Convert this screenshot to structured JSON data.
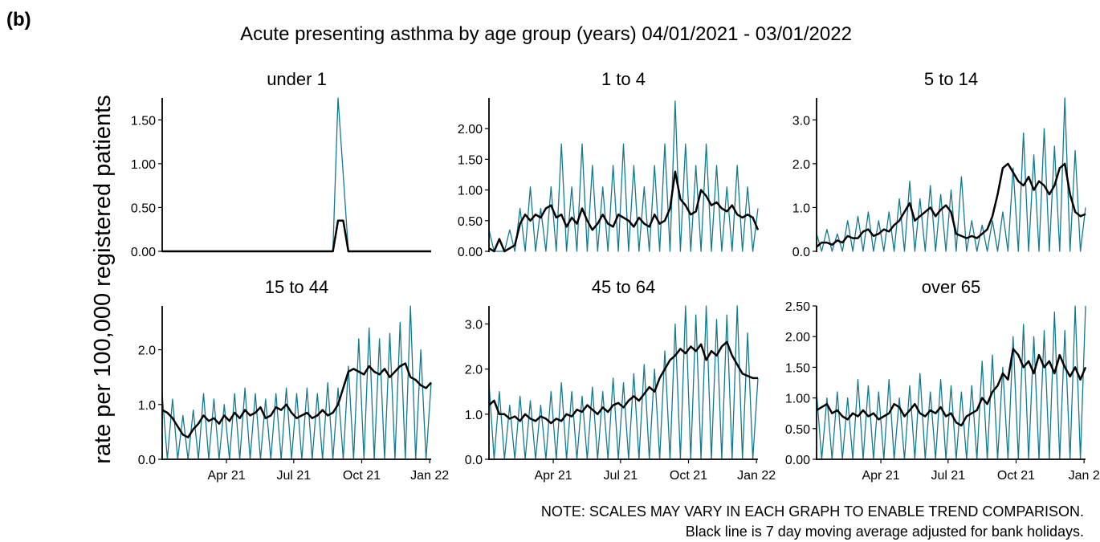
{
  "figure": {
    "label": "(b)",
    "title": "Acute presenting asthma by age group (years) 04/01/2021 - 03/01/2022",
    "ylabel": "rate per 100,000 registered patients",
    "notes": [
      "NOTE: SCALES MAY VARY IN EACH GRAPH TO ENABLE TREND COMPARISON.",
      "Black line is 7 day moving average adjusted for bank holidays."
    ]
  },
  "chart_data": [
    {
      "type": "line",
      "title": "under 1",
      "x": [
        0,
        7,
        14,
        21,
        28,
        35,
        42,
        49,
        56,
        63,
        70,
        77,
        84,
        91,
        98,
        105,
        112,
        119,
        126,
        133,
        140,
        147,
        154,
        161,
        168,
        175,
        182,
        189,
        196,
        203,
        210,
        217,
        224,
        231,
        238,
        245,
        252,
        259,
        266,
        273,
        280,
        287,
        294,
        301,
        308,
        315,
        322,
        329,
        336,
        343,
        350,
        357,
        364
      ],
      "xlim": [
        0,
        364
      ],
      "ylim": [
        0,
        1.75
      ],
      "yticks": [
        {
          "value": 0,
          "label": "0.00"
        },
        {
          "value": 0.5,
          "label": "0.50"
        },
        {
          "value": 1,
          "label": "1.00"
        },
        {
          "value": 1.5,
          "label": "1.50"
        }
      ],
      "series": [
        {
          "color": "#127a8f",
          "values": [
            0,
            0,
            0,
            0,
            0,
            0,
            0,
            0,
            0,
            0,
            0,
            0,
            0,
            0,
            0,
            0,
            0,
            0,
            0,
            0,
            0,
            0,
            0,
            0,
            0,
            0,
            0,
            0,
            0,
            0,
            0,
            0,
            0,
            0,
            1.75,
            0.87,
            0,
            0,
            0,
            0,
            0,
            0,
            0,
            0,
            0,
            0,
            0,
            0,
            0,
            0,
            0,
            0,
            0
          ]
        },
        {
          "color": "#000000",
          "values": [
            0,
            0,
            0,
            0,
            0,
            0,
            0,
            0,
            0,
            0,
            0,
            0,
            0,
            0,
            0,
            0,
            0,
            0,
            0,
            0,
            0,
            0,
            0,
            0,
            0,
            0,
            0,
            0,
            0,
            0,
            0,
            0,
            0,
            0,
            0.35,
            0.35,
            0,
            0,
            0,
            0,
            0,
            0,
            0,
            0,
            0,
            0,
            0,
            0,
            0,
            0,
            0,
            0,
            0
          ]
        }
      ]
    },
    {
      "type": "line",
      "title": "1 to 4",
      "x": [
        0,
        7,
        14,
        21,
        28,
        35,
        42,
        49,
        56,
        63,
        70,
        77,
        84,
        91,
        98,
        105,
        112,
        119,
        126,
        133,
        140,
        147,
        154,
        161,
        168,
        175,
        182,
        189,
        196,
        203,
        210,
        217,
        224,
        231,
        238,
        245,
        252,
        259,
        266,
        273,
        280,
        287,
        294,
        301,
        308,
        315,
        322,
        329,
        336,
        343,
        350,
        357,
        364
      ],
      "xlim": [
        0,
        364
      ],
      "ylim": [
        0,
        2.5
      ],
      "yticks": [
        {
          "value": 0,
          "label": "0.00"
        },
        {
          "value": 0.5,
          "label": "0.50"
        },
        {
          "value": 1,
          "label": "1.00"
        },
        {
          "value": 1.5,
          "label": "1.50"
        },
        {
          "value": 2,
          "label": "2.00"
        }
      ],
      "series": [
        {
          "color": "#127a8f",
          "values": [
            0.35,
            0,
            0,
            0,
            0.35,
            0,
            0.7,
            0,
            1.05,
            0,
            0.7,
            0,
            1.05,
            0,
            1.75,
            0,
            1.05,
            0,
            1.75,
            0,
            1.4,
            0,
            1.05,
            0,
            1.4,
            0,
            1.75,
            0,
            1.4,
            0,
            1.05,
            0,
            1.4,
            0,
            1.75,
            0,
            2.45,
            0,
            1.75,
            0,
            1.4,
            0,
            1.75,
            0,
            1.4,
            0,
            1.05,
            0,
            1.4,
            0,
            1.05,
            0,
            0.7
          ]
        },
        {
          "color": "#000000",
          "values": [
            0.05,
            0,
            0.2,
            0,
            0.05,
            0.1,
            0.45,
            0.6,
            0.5,
            0.6,
            0.55,
            0.7,
            0.75,
            0.55,
            0.6,
            0.4,
            0.55,
            0.45,
            0.7,
            0.5,
            0.35,
            0.45,
            0.6,
            0.45,
            0.4,
            0.6,
            0.55,
            0.5,
            0.4,
            0.55,
            0.45,
            0.4,
            0.6,
            0.45,
            0.5,
            0.7,
            1.3,
            0.85,
            0.75,
            0.6,
            0.65,
            1.0,
            0.9,
            0.75,
            0.8,
            0.7,
            0.65,
            0.75,
            0.6,
            0.55,
            0.6,
            0.55,
            0.35
          ]
        }
      ]
    },
    {
      "type": "line",
      "title": "5 to 14",
      "x": [
        0,
        7,
        14,
        21,
        28,
        35,
        42,
        49,
        56,
        63,
        70,
        77,
        84,
        91,
        98,
        105,
        112,
        119,
        126,
        133,
        140,
        147,
        154,
        161,
        168,
        175,
        182,
        189,
        196,
        203,
        210,
        217,
        224,
        231,
        238,
        245,
        252,
        259,
        266,
        273,
        280,
        287,
        294,
        301,
        308,
        315,
        322,
        329,
        336,
        343,
        350,
        357,
        364
      ],
      "xlim": [
        0,
        364
      ],
      "ylim": [
        0,
        3.5
      ],
      "yticks": [
        {
          "value": 0,
          "label": "0.0"
        },
        {
          "value": 1,
          "label": "1.0"
        },
        {
          "value": 2,
          "label": "2.0"
        },
        {
          "value": 3,
          "label": "3.0"
        }
      ],
      "series": [
        {
          "color": "#127a8f",
          "values": [
            0.4,
            0,
            0.5,
            0,
            0.4,
            0,
            0.7,
            0,
            0.8,
            0,
            0.9,
            0,
            0.7,
            0,
            0.9,
            0,
            1.2,
            0,
            1.6,
            0,
            1.2,
            0,
            1.5,
            0,
            1.3,
            0,
            1.4,
            0,
            1.7,
            0,
            0.7,
            0,
            0.6,
            0,
            0.7,
            0,
            0.9,
            0,
            1.9,
            0,
            2.7,
            0,
            2.2,
            0,
            2.8,
            0,
            2.4,
            0,
            3.5,
            0,
            2.3,
            0,
            1.0
          ]
        },
        {
          "color": "#000000",
          "values": [
            0.1,
            0.2,
            0.2,
            0.15,
            0.25,
            0.2,
            0.35,
            0.3,
            0.3,
            0.45,
            0.5,
            0.35,
            0.4,
            0.5,
            0.45,
            0.6,
            0.7,
            0.9,
            1.1,
            0.7,
            0.8,
            0.9,
            1.0,
            0.8,
            0.95,
            1.05,
            0.9,
            0.4,
            0.35,
            0.3,
            0.35,
            0.3,
            0.4,
            0.5,
            0.8,
            1.3,
            1.9,
            2.0,
            1.8,
            1.6,
            1.5,
            1.7,
            1.4,
            1.6,
            1.5,
            1.3,
            1.5,
            1.9,
            2.0,
            1.3,
            0.9,
            0.8,
            0.85
          ]
        }
      ]
    },
    {
      "type": "line",
      "title": "15 to 44",
      "x": [
        0,
        7,
        14,
        21,
        28,
        35,
        42,
        49,
        56,
        63,
        70,
        77,
        84,
        91,
        98,
        105,
        112,
        119,
        126,
        133,
        140,
        147,
        154,
        161,
        168,
        175,
        182,
        189,
        196,
        203,
        210,
        217,
        224,
        231,
        238,
        245,
        252,
        259,
        266,
        273,
        280,
        287,
        294,
        301,
        308,
        315,
        322,
        329,
        336,
        343,
        350,
        357,
        364
      ],
      "xlim": [
        0,
        364
      ],
      "xticks": [
        {
          "value": 87,
          "label": "Apr 21"
        },
        {
          "value": 178,
          "label": "Jul 21"
        },
        {
          "value": 270,
          "label": "Oct 21"
        },
        {
          "value": 362,
          "label": "Jan 22"
        }
      ],
      "ylim": [
        0,
        2.8
      ],
      "yticks": [
        {
          "value": 0,
          "label": "0.0"
        },
        {
          "value": 1,
          "label": "1.0"
        },
        {
          "value": 2,
          "label": "2.0"
        }
      ],
      "series": [
        {
          "color": "#127a8f",
          "values": [
            1.2,
            0,
            1.1,
            0,
            0.8,
            0,
            0.9,
            0,
            1.2,
            0,
            1.1,
            0,
            1.0,
            0,
            1.2,
            0,
            1.3,
            0,
            1.2,
            0,
            1.1,
            0,
            1.2,
            0,
            1.3,
            0,
            1.2,
            0,
            1.3,
            0,
            1.2,
            0,
            1.4,
            0,
            1.3,
            0,
            1.7,
            0,
            2.2,
            0,
            2.4,
            0,
            2.2,
            0,
            2.3,
            0,
            2.5,
            0,
            2.8,
            0,
            2.0,
            0,
            1.4
          ]
        },
        {
          "color": "#000000",
          "values": [
            0.9,
            0.85,
            0.75,
            0.6,
            0.45,
            0.4,
            0.55,
            0.65,
            0.8,
            0.7,
            0.75,
            0.65,
            0.8,
            0.7,
            0.85,
            0.75,
            0.9,
            0.8,
            0.85,
            0.95,
            0.75,
            0.8,
            0.95,
            0.9,
            1.0,
            0.85,
            0.75,
            0.8,
            0.85,
            0.75,
            0.8,
            0.9,
            0.8,
            0.85,
            1.0,
            1.3,
            1.6,
            1.65,
            1.6,
            1.55,
            1.7,
            1.6,
            1.55,
            1.65,
            1.5,
            1.6,
            1.7,
            1.75,
            1.5,
            1.45,
            1.35,
            1.3,
            1.4
          ]
        }
      ]
    },
    {
      "type": "line",
      "title": "45 to 64",
      "x": [
        0,
        7,
        14,
        21,
        28,
        35,
        42,
        49,
        56,
        63,
        70,
        77,
        84,
        91,
        98,
        105,
        112,
        119,
        126,
        133,
        140,
        147,
        154,
        161,
        168,
        175,
        182,
        189,
        196,
        203,
        210,
        217,
        224,
        231,
        238,
        245,
        252,
        259,
        266,
        273,
        280,
        287,
        294,
        301,
        308,
        315,
        322,
        329,
        336,
        343,
        350,
        357,
        364
      ],
      "xlim": [
        0,
        364
      ],
      "xticks": [
        {
          "value": 87,
          "label": "Apr 21"
        },
        {
          "value": 178,
          "label": "Jul 21"
        },
        {
          "value": 270,
          "label": "Oct 21"
        },
        {
          "value": 362,
          "label": "Jan 22"
        }
      ],
      "ylim": [
        0,
        3.4
      ],
      "yticks": [
        {
          "value": 0,
          "label": "0.0"
        },
        {
          "value": 1,
          "label": "1.0"
        },
        {
          "value": 2,
          "label": "2.0"
        },
        {
          "value": 3,
          "label": "3.0"
        }
      ],
      "series": [
        {
          "color": "#127a8f",
          "values": [
            1.7,
            0,
            1.5,
            0,
            1.2,
            0,
            1.4,
            0,
            1.3,
            0,
            1.2,
            0,
            1.5,
            0,
            1.7,
            0,
            1.5,
            0,
            1.4,
            0,
            1.6,
            0,
            1.5,
            0,
            1.8,
            0,
            1.7,
            0,
            1.9,
            0,
            2.1,
            0,
            2.0,
            0,
            2.4,
            0,
            3.0,
            0,
            3.4,
            0,
            3.2,
            0,
            3.4,
            0,
            3.1,
            0,
            3.2,
            0,
            3.4,
            0,
            2.8,
            0,
            1.8
          ]
        },
        {
          "color": "#000000",
          "values": [
            1.2,
            1.3,
            1.0,
            1.0,
            0.9,
            0.95,
            0.85,
            1.0,
            0.9,
            0.85,
            0.95,
            0.9,
            0.8,
            0.9,
            0.85,
            1.0,
            0.95,
            1.1,
            1.05,
            1.2,
            1.1,
            1.0,
            1.15,
            1.05,
            1.2,
            1.25,
            1.15,
            1.3,
            1.4,
            1.3,
            1.45,
            1.6,
            1.5,
            1.8,
            2.0,
            2.2,
            2.3,
            2.45,
            2.35,
            2.5,
            2.4,
            2.55,
            2.2,
            2.4,
            2.3,
            2.5,
            2.6,
            2.3,
            2.1,
            1.9,
            1.85,
            1.8,
            1.8
          ]
        }
      ]
    },
    {
      "type": "line",
      "title": "over 65",
      "x": [
        0,
        7,
        14,
        21,
        28,
        35,
        42,
        49,
        56,
        63,
        70,
        77,
        84,
        91,
        98,
        105,
        112,
        119,
        126,
        133,
        140,
        147,
        154,
        161,
        168,
        175,
        182,
        189,
        196,
        203,
        210,
        217,
        224,
        231,
        238,
        245,
        252,
        259,
        266,
        273,
        280,
        287,
        294,
        301,
        308,
        315,
        322,
        329,
        336,
        343,
        350,
        357,
        364
      ],
      "xlim": [
        0,
        364
      ],
      "xticks": [
        {
          "value": 87,
          "label": "Apr 21"
        },
        {
          "value": 178,
          "label": "Jul 21"
        },
        {
          "value": 270,
          "label": "Oct 21"
        },
        {
          "value": 362,
          "label": "Jan 2"
        }
      ],
      "ylim": [
        0,
        2.5
      ],
      "yticks": [
        {
          "value": 0,
          "label": "0.00"
        },
        {
          "value": 0.5,
          "label": "0.50"
        },
        {
          "value": 1,
          "label": "1.00"
        },
        {
          "value": 1.5,
          "label": "1.50"
        },
        {
          "value": 2,
          "label": "2.00"
        },
        {
          "value": 2.5,
          "label": "2.50"
        }
      ],
      "series": [
        {
          "color": "#127a8f",
          "values": [
            1.1,
            0,
            1.0,
            0,
            1.1,
            0,
            1.0,
            0,
            1.3,
            0,
            1.2,
            0,
            1.1,
            0,
            1.3,
            0,
            1.0,
            0,
            1.2,
            0,
            1.4,
            0,
            1.1,
            0,
            1.3,
            0,
            1.2,
            0,
            1.1,
            0,
            1.2,
            0,
            1.6,
            0,
            1.7,
            0,
            1.5,
            0,
            2.0,
            0,
            2.2,
            0,
            2.0,
            0,
            2.1,
            0,
            2.4,
            0,
            2.1,
            0,
            2.5,
            0,
            2.5
          ]
        },
        {
          "color": "#000000",
          "values": [
            0.8,
            0.85,
            0.9,
            0.75,
            0.8,
            0.7,
            0.65,
            0.75,
            0.7,
            0.8,
            0.7,
            0.75,
            0.65,
            0.7,
            0.75,
            0.9,
            0.85,
            0.7,
            0.8,
            0.9,
            0.75,
            0.7,
            0.8,
            0.75,
            0.85,
            0.7,
            0.75,
            0.6,
            0.55,
            0.7,
            0.75,
            0.8,
            1.0,
            0.9,
            1.1,
            1.2,
            1.4,
            1.3,
            1.8,
            1.7,
            1.5,
            1.6,
            1.4,
            1.7,
            1.5,
            1.6,
            1.4,
            1.7,
            1.5,
            1.35,
            1.5,
            1.3,
            1.5
          ]
        }
      ]
    }
  ]
}
